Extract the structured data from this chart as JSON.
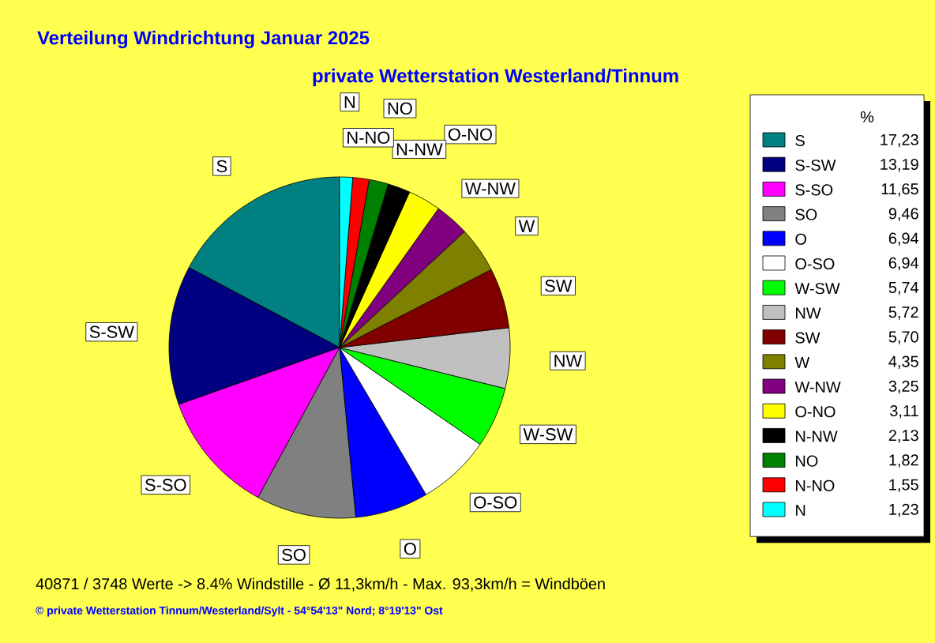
{
  "chart_data": {
    "type": "pie",
    "title": "Verteilung Windrichtung   Januar 2025",
    "subtitle": "private Wetterstation Westerland/Tinnum",
    "legend_title": "%",
    "legend": "right",
    "categories": [
      "S",
      "S-SW",
      "S-SO",
      "SO",
      "O",
      "O-SO",
      "W-SW",
      "NW",
      "SW",
      "W",
      "W-NW",
      "O-NO",
      "N-NW",
      "NO",
      "N-NO",
      "N"
    ],
    "values": [
      17.23,
      13.19,
      11.65,
      9.46,
      6.94,
      6.94,
      5.74,
      5.72,
      5.7,
      4.35,
      3.25,
      3.11,
      2.13,
      1.82,
      1.55,
      1.23
    ],
    "value_labels": [
      "17,23",
      "13,19",
      "11,65",
      "9,46",
      "6,94",
      "6,94",
      "5,74",
      "5,72",
      "5,70",
      "4,35",
      "3,25",
      "3,11",
      "2,13",
      "1,82",
      "1,55",
      "1,23"
    ],
    "colors": [
      "#008080",
      "#000080",
      "#ff00ff",
      "#808080",
      "#0000ff",
      "#ffffff",
      "#00ff00",
      "#c0c0c0",
      "#800000",
      "#808000",
      "#800080",
      "#ffff00",
      "#000000",
      "#008000",
      "#ff0000",
      "#00ffff"
    ],
    "annotations": [
      "40871 / 3748 Werte  -> 8.4% Windstille   -   Ø 11,3km/h  -  Max. 93,3km/h = Windböen",
      "© private Wetterstation Tinnum/Westerland/Sylt  -  54°54'13\" Nord; 8°19'13\" Ost"
    ]
  }
}
